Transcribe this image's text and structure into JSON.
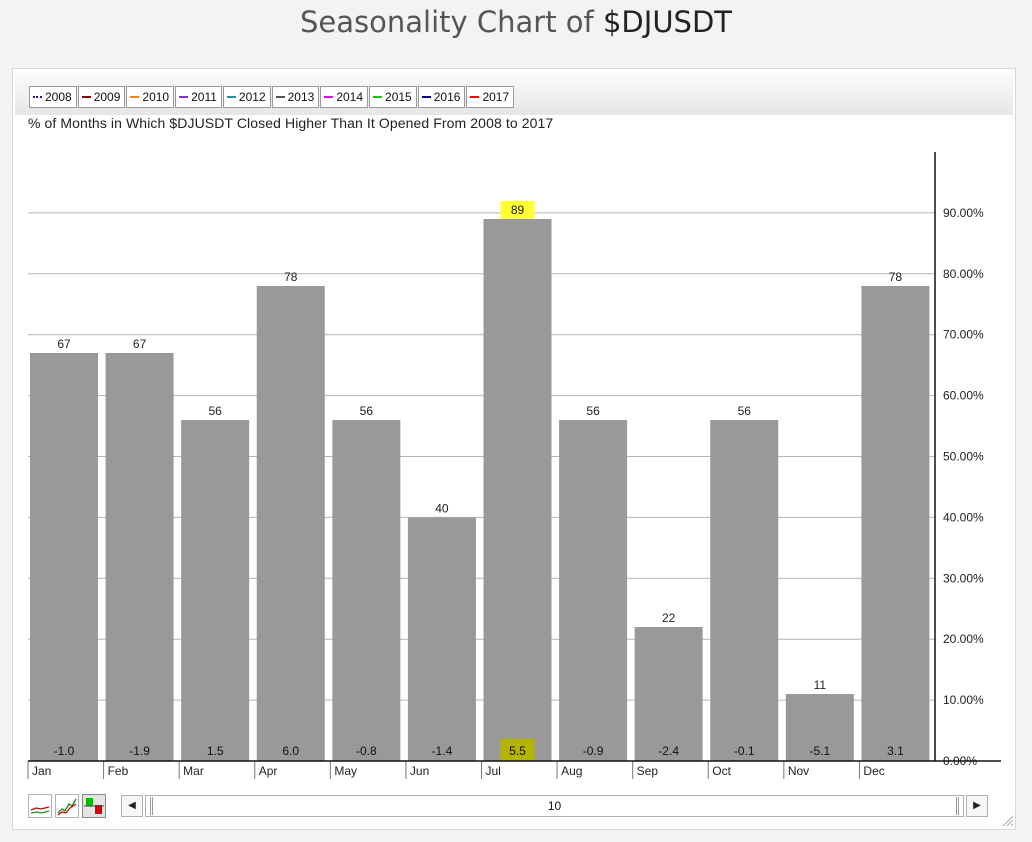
{
  "page": {
    "title_prefix": "Seasonality Chart of ",
    "title_ticker": "$DJUSDT"
  },
  "legend": [
    {
      "label": "2008",
      "color": "#1a1aa0",
      "style": "dotted"
    },
    {
      "label": "2009",
      "color": "#8b0000",
      "style": "solid"
    },
    {
      "label": "2010",
      "color": "#ff7f00",
      "style": "solid"
    },
    {
      "label": "2011",
      "color": "#8a2be2",
      "style": "solid"
    },
    {
      "label": "2012",
      "color": "#1e90a0",
      "style": "solid"
    },
    {
      "label": "2013",
      "color": "#555555",
      "style": "solid"
    },
    {
      "label": "2014",
      "color": "#ff00ff",
      "style": "solid"
    },
    {
      "label": "2015",
      "color": "#00cc00",
      "style": "solid"
    },
    {
      "label": "2016",
      "color": "#00008b",
      "style": "solid"
    },
    {
      "label": "2017",
      "color": "#ff0000",
      "style": "solid"
    }
  ],
  "chart_data": {
    "type": "bar",
    "subtitle": "% of Months in Which $DJUSDT Closed Higher Than It Opened From 2008 to 2017",
    "categories": [
      "Jan",
      "Feb",
      "Mar",
      "Apr",
      "May",
      "Jun",
      "Jul",
      "Aug",
      "Sep",
      "Oct",
      "Nov",
      "Dec"
    ],
    "values": [
      67,
      67,
      56,
      78,
      56,
      40,
      89,
      56,
      22,
      56,
      11,
      78
    ],
    "avg_returns": [
      "-1.0",
      "-1.9",
      "1.5",
      "6.0",
      "-0.8",
      "-1.4",
      "5.5",
      "-0.9",
      "-2.4",
      "-0.1",
      "-5.1",
      "3.1"
    ],
    "ylim": [
      0,
      100
    ],
    "yticks": [
      0,
      10,
      20,
      30,
      40,
      50,
      60,
      70,
      80,
      90
    ],
    "ytick_labels": [
      "0.00%",
      "10.00%",
      "20.00%",
      "30.00%",
      "40.00%",
      "50.00%",
      "60.00%",
      "70.00%",
      "80.00%",
      "90.00%"
    ],
    "y_axis_side": "right",
    "grid": true,
    "bar_color": "#999999",
    "highlight_index": 6,
    "highlight_top_color": "#ffff33",
    "highlight_bottom_color": "#b3b300"
  },
  "controls": {
    "icons": [
      "line-chart-icon",
      "performance-chart-icon",
      "bar-chart-icon"
    ],
    "scroll_value": "10",
    "scroll_left": "◀",
    "scroll_right": "▶"
  }
}
